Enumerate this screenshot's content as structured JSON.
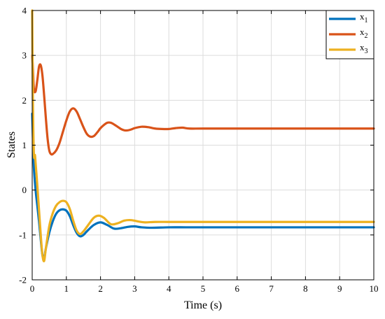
{
  "chart_data": {
    "type": "line",
    "title": "",
    "xlabel": "Time  (s)",
    "ylabel": "States",
    "xlim": [
      0,
      10
    ],
    "ylim": [
      -2,
      4
    ],
    "xticks": [
      "0",
      "1",
      "2",
      "3",
      "4",
      "5",
      "6",
      "7",
      "8",
      "9",
      "10"
    ],
    "yticks": [
      "-2",
      "-1",
      "0",
      "1",
      "2",
      "3",
      "4"
    ],
    "grid": true,
    "legend_position": "top-right",
    "series": [
      {
        "name": "x1",
        "name_base": "x",
        "name_sub": "1",
        "color": "#0072BD",
        "x": [
          0,
          0.02,
          0.05,
          0.1,
          0.15,
          0.2,
          0.25,
          0.3,
          0.35,
          0.4,
          0.5,
          0.6,
          0.7,
          0.8,
          0.9,
          1.0,
          1.1,
          1.2,
          1.3,
          1.4,
          1.5,
          1.6,
          1.8,
          2.0,
          2.2,
          2.4,
          2.6,
          2.8,
          3.0,
          3.2,
          3.5,
          4.0,
          4.5,
          5.0,
          6.0,
          7.0,
          8.0,
          9.0,
          10.0
        ],
        "y": [
          1.7,
          1.2,
          0.5,
          0.0,
          -0.35,
          -0.7,
          -1.1,
          -1.45,
          -1.52,
          -1.3,
          -0.95,
          -0.7,
          -0.53,
          -0.45,
          -0.43,
          -0.46,
          -0.58,
          -0.78,
          -0.95,
          -1.03,
          -1.0,
          -0.92,
          -0.78,
          -0.72,
          -0.78,
          -0.86,
          -0.85,
          -0.82,
          -0.81,
          -0.83,
          -0.84,
          -0.83,
          -0.83,
          -0.83,
          -0.83,
          -0.83,
          -0.83,
          -0.83,
          -0.83
        ]
      },
      {
        "name": "x2",
        "name_base": "x",
        "name_sub": "2",
        "color": "#D95319",
        "x": [
          0,
          0.02,
          0.05,
          0.1,
          0.15,
          0.2,
          0.25,
          0.3,
          0.35,
          0.4,
          0.45,
          0.5,
          0.55,
          0.6,
          0.7,
          0.8,
          0.9,
          1.0,
          1.1,
          1.2,
          1.3,
          1.4,
          1.5,
          1.6,
          1.7,
          1.8,
          1.9,
          2.0,
          2.1,
          2.2,
          2.3,
          2.4,
          2.5,
          2.6,
          2.7,
          2.8,
          2.9,
          3.0,
          3.2,
          3.4,
          3.6,
          3.8,
          4.0,
          4.2,
          4.4,
          4.6,
          5.0,
          6.0,
          7.0,
          8.0,
          9.0,
          10.0
        ],
        "y": [
          3.0,
          2.7,
          2.25,
          2.2,
          2.45,
          2.75,
          2.78,
          2.55,
          2.1,
          1.6,
          1.15,
          0.88,
          0.8,
          0.8,
          0.88,
          1.05,
          1.3,
          1.55,
          1.75,
          1.82,
          1.75,
          1.58,
          1.4,
          1.25,
          1.19,
          1.2,
          1.28,
          1.38,
          1.45,
          1.5,
          1.5,
          1.46,
          1.41,
          1.36,
          1.33,
          1.33,
          1.35,
          1.38,
          1.41,
          1.4,
          1.37,
          1.36,
          1.36,
          1.38,
          1.39,
          1.37,
          1.37,
          1.37,
          1.37,
          1.37,
          1.37,
          1.37
        ]
      },
      {
        "name": "x3",
        "name_base": "x",
        "name_sub": "3",
        "color": "#EDB120",
        "x": [
          0,
          0.02,
          0.05,
          0.08,
          0.1,
          0.15,
          0.2,
          0.25,
          0.3,
          0.35,
          0.4,
          0.5,
          0.6,
          0.7,
          0.8,
          0.9,
          1.0,
          1.1,
          1.2,
          1.3,
          1.4,
          1.5,
          1.6,
          1.8,
          1.95,
          2.1,
          2.3,
          2.5,
          2.7,
          2.9,
          3.1,
          3.3,
          3.6,
          4.0,
          4.5,
          5.0,
          6.0,
          7.0,
          8.0,
          9.0,
          10.0
        ],
        "y": [
          4.0,
          2.0,
          0.8,
          0.78,
          0.6,
          0.1,
          -0.45,
          -1.0,
          -1.45,
          -1.58,
          -1.3,
          -0.8,
          -0.52,
          -0.35,
          -0.27,
          -0.24,
          -0.27,
          -0.42,
          -0.68,
          -0.9,
          -0.98,
          -0.92,
          -0.82,
          -0.62,
          -0.57,
          -0.62,
          -0.76,
          -0.74,
          -0.68,
          -0.67,
          -0.7,
          -0.72,
          -0.71,
          -0.71,
          -0.71,
          -0.71,
          -0.71,
          -0.71,
          -0.71,
          -0.71,
          -0.71
        ]
      }
    ]
  }
}
